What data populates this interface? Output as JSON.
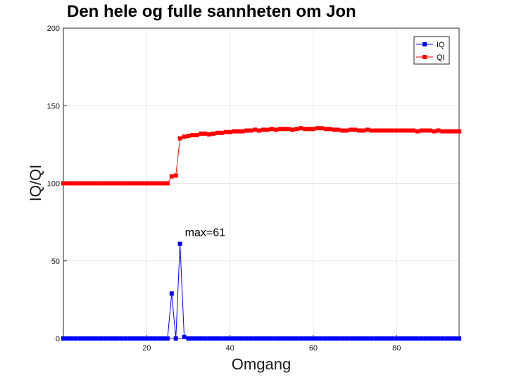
{
  "chart_data": {
    "type": "line",
    "title": "Den hele og fulle sannheten om Jon",
    "xlabel": "Omgang",
    "ylabel": "IQ/QI",
    "xlim": [
      0,
      95
    ],
    "ylim": [
      0,
      200
    ],
    "xticks": [
      20,
      40,
      60,
      80
    ],
    "yticks": [
      0,
      50,
      100,
      150,
      200
    ],
    "grid": true,
    "legend_position": "top-right",
    "annotation": {
      "text": "max=61",
      "x": 28,
      "y": 61
    },
    "series": [
      {
        "name": "IQ",
        "color": "#0000ff",
        "marker": "square",
        "x": [
          0,
          1,
          2,
          3,
          4,
          5,
          6,
          7,
          8,
          9,
          10,
          11,
          12,
          13,
          14,
          15,
          16,
          17,
          18,
          19,
          20,
          21,
          22,
          23,
          24,
          25,
          26,
          27,
          28,
          29,
          30,
          31,
          32,
          33,
          34,
          35,
          36,
          37,
          38,
          39,
          40,
          41,
          42,
          43,
          44,
          45,
          46,
          47,
          48,
          49,
          50,
          51,
          52,
          53,
          54,
          55,
          56,
          57,
          58,
          59,
          60,
          61,
          62,
          63,
          64,
          65,
          66,
          67,
          68,
          69,
          70,
          71,
          72,
          73,
          74,
          75,
          76,
          77,
          78,
          79,
          80,
          81,
          82,
          83,
          84,
          85,
          86,
          87,
          88,
          89,
          90,
          91,
          92,
          93,
          94,
          95
        ],
        "y": [
          0,
          0,
          0,
          0,
          0,
          0,
          0,
          0,
          0,
          0,
          0,
          0,
          0,
          0,
          0,
          0,
          0,
          0,
          0,
          0,
          0,
          0,
          0,
          0,
          0,
          0,
          29,
          0,
          61,
          1,
          0,
          0,
          0,
          0,
          0,
          0,
          0,
          0,
          0,
          0,
          0,
          0,
          0,
          0,
          0,
          0,
          0,
          0,
          0,
          0,
          0,
          0,
          0,
          0,
          0,
          0,
          0,
          0,
          0,
          0,
          0,
          0,
          0,
          0,
          0,
          0,
          0,
          0,
          0,
          0,
          0,
          0,
          0,
          0,
          0,
          0,
          0,
          0,
          0,
          0,
          0,
          0,
          0,
          0,
          0,
          0,
          0,
          0,
          0,
          0,
          0,
          0,
          0,
          0,
          0,
          0
        ]
      },
      {
        "name": "QI",
        "color": "#ff0000",
        "marker": "square",
        "x": [
          0,
          1,
          2,
          3,
          4,
          5,
          6,
          7,
          8,
          9,
          10,
          11,
          12,
          13,
          14,
          15,
          16,
          17,
          18,
          19,
          20,
          21,
          22,
          23,
          24,
          25,
          26,
          27,
          28,
          29,
          30,
          31,
          32,
          33,
          34,
          35,
          36,
          37,
          38,
          39,
          40,
          41,
          42,
          43,
          44,
          45,
          46,
          47,
          48,
          49,
          50,
          51,
          52,
          53,
          54,
          55,
          56,
          57,
          58,
          59,
          60,
          61,
          62,
          63,
          64,
          65,
          66,
          67,
          68,
          69,
          70,
          71,
          72,
          73,
          74,
          75,
          76,
          77,
          78,
          79,
          80,
          81,
          82,
          83,
          84,
          85,
          86,
          87,
          88,
          89,
          90,
          91,
          92,
          93,
          94,
          95
        ],
        "y": [
          100,
          100,
          100,
          100,
          100,
          100,
          100,
          100,
          100,
          100,
          100,
          100,
          100,
          100,
          100,
          100,
          100,
          100,
          100,
          100,
          100,
          100,
          100,
          100,
          100,
          100,
          104.5,
          105,
          129,
          130,
          130.5,
          131,
          131,
          132,
          132,
          131.5,
          132,
          132.5,
          132.5,
          133,
          133,
          133.5,
          133.5,
          133.5,
          134,
          134,
          134.5,
          134,
          134.5,
          134.5,
          135,
          134.5,
          135,
          135,
          135,
          134.5,
          135,
          135.5,
          135,
          135,
          135,
          135.5,
          135.5,
          135,
          135,
          134.5,
          134.5,
          134,
          134,
          134.5,
          134.5,
          134,
          134,
          134.5,
          134,
          134,
          134,
          134,
          134,
          134,
          134,
          134,
          134,
          134,
          134,
          133.5,
          134,
          134,
          134,
          133.5,
          134,
          133.5,
          133.5,
          133.5,
          133.5,
          133.5
        ]
      }
    ]
  }
}
